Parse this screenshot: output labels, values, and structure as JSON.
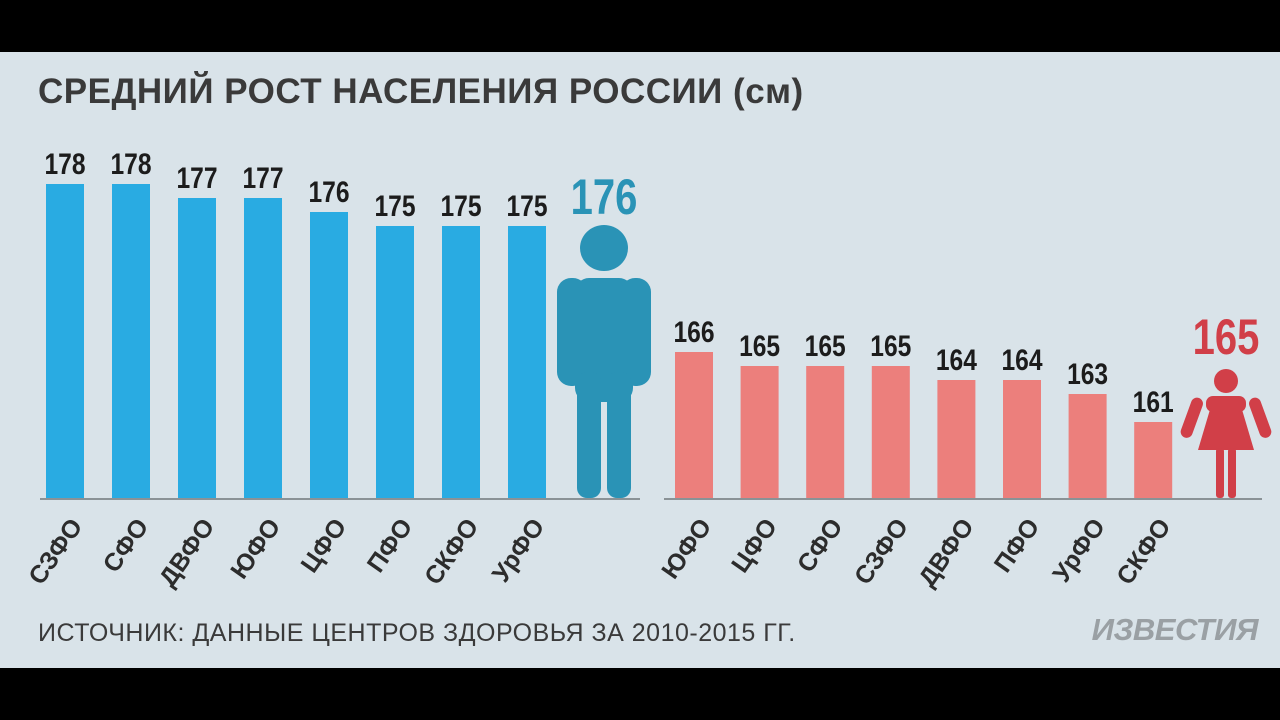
{
  "title": "СРЕДНИЙ РОСТ НАСЕЛЕНИЯ РОССИИ (см)",
  "source": "ИСТОЧНИК: ДАННЫЕ ЦЕНТРОВ ЗДОРОВЬЯ ЗА 2010-2015 ГГ.",
  "logo_text": "ИЗВЕСТИЯ",
  "chart_data": [
    {
      "type": "bar",
      "categories": [
        "СЗФО",
        "СФО",
        "ДВФО",
        "ЮФО",
        "ЦФО",
        "ПФО",
        "СКФО",
        "УрФО"
      ],
      "values": [
        178,
        178,
        177,
        177,
        176,
        175,
        175,
        175
      ],
      "average": 176,
      "average_icon": "man-figure-icon",
      "color": "#29abe2",
      "average_color": "#2a93b6"
    },
    {
      "type": "bar",
      "categories": [
        "ЮФО",
        "ЦФО",
        "СФО",
        "СЗФО",
        "ДВФО",
        "ПФО",
        "УрФО",
        "СКФО"
      ],
      "values": [
        166,
        165,
        165,
        165,
        164,
        164,
        163,
        161
      ],
      "average": 165,
      "average_icon": "woman-figure-icon",
      "color": "#ec7f7c",
      "average_color": "#d13f48"
    }
  ]
}
